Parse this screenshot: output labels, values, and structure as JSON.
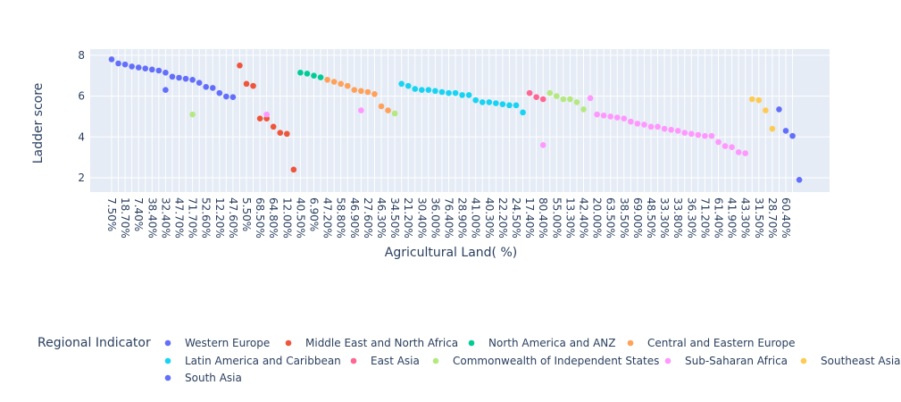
{
  "chart_data": {
    "type": "scatter",
    "xlabel": "Agricultural Land( %)",
    "ylabel": "Ladder score",
    "ylim": [
      1.3,
      8.3
    ],
    "yticks": [
      2,
      4,
      6,
      8
    ],
    "grid": true,
    "legend": {
      "title": "Regional Indicator",
      "placement": "bottom"
    },
    "categories": [
      "7.50%",
      "",
      "18.70%",
      "",
      "7.40%",
      "",
      "38.40%",
      "",
      "32.40%",
      "",
      "47.70%",
      "",
      "71.70%",
      "",
      "52.60%",
      "",
      "12.20%",
      "",
      "47.60%",
      "",
      "5.50%",
      "",
      "68.50%",
      "",
      "64.80%",
      "",
      "12.00%",
      "",
      "40.50%",
      "",
      "6.90%",
      "",
      "47.20%",
      "",
      "58.80%",
      "",
      "46.90%",
      "",
      "27.60%",
      "",
      "46.30%",
      "",
      "34.50%",
      "",
      "21.20%",
      "",
      "30.40%",
      "",
      "36.00%",
      "",
      "76.40%",
      "",
      "28.90%",
      "",
      "41.00%",
      "",
      "40.30%",
      "",
      "22.20%",
      "",
      "24.50%",
      "",
      "17.40%",
      "",
      "80.40%",
      "",
      "55.00%",
      "",
      "13.30%",
      "",
      "42.40%",
      "",
      "20.00%",
      "",
      "63.50%",
      "",
      "38.50%",
      "",
      "69.00%",
      "",
      "48.50%",
      "",
      "33.30%",
      "",
      "33.80%",
      "",
      "36.30%",
      "",
      "71.20%",
      "",
      "61.40%",
      "",
      "41.90%",
      "",
      "43.30%",
      "",
      "31.50%",
      "",
      "28.70%",
      "",
      "60.40%",
      ""
    ],
    "series": [
      {
        "name": "Western Europe",
        "color": "#636efa",
        "points": [
          [
            0,
            7.8
          ],
          [
            1,
            7.6
          ],
          [
            2,
            7.55
          ],
          [
            3,
            7.45
          ],
          [
            4,
            7.4
          ],
          [
            5,
            7.35
          ],
          [
            6,
            7.3
          ],
          [
            7,
            7.25
          ],
          [
            8,
            7.15
          ],
          [
            9,
            6.95
          ],
          [
            10,
            6.9
          ],
          [
            11,
            6.85
          ],
          [
            12,
            6.8
          ],
          [
            13,
            6.65
          ],
          [
            14,
            6.45
          ],
          [
            15,
            6.4
          ],
          [
            16,
            6.15
          ],
          [
            17,
            5.98
          ],
          [
            18,
            5.95
          ],
          [
            8,
            6.3
          ]
        ]
      },
      {
        "name": "Middle East and North Africa",
        "color": "#ef553b",
        "points": [
          [
            19,
            7.5
          ],
          [
            20,
            6.6
          ],
          [
            21,
            6.5
          ],
          [
            22,
            4.9
          ],
          [
            23,
            4.9
          ],
          [
            24,
            4.5
          ],
          [
            25,
            4.2
          ],
          [
            26,
            4.15
          ],
          [
            27,
            2.4
          ]
        ]
      },
      {
        "name": "North America and ANZ",
        "color": "#00cc96",
        "points": [
          [
            28,
            7.15
          ],
          [
            29,
            7.1
          ],
          [
            30,
            7.0
          ],
          [
            31,
            6.92
          ]
        ]
      },
      {
        "name": "Central and Eastern Europe",
        "color": "#ffa15a",
        "points": [
          [
            32,
            6.8
          ],
          [
            33,
            6.7
          ],
          [
            34,
            6.6
          ],
          [
            35,
            6.5
          ],
          [
            36,
            6.3
          ],
          [
            37,
            6.25
          ],
          [
            38,
            6.2
          ],
          [
            39,
            6.1
          ],
          [
            40,
            5.5
          ],
          [
            41,
            5.3
          ]
        ]
      },
      {
        "name": "Latin America and Caribbean",
        "color": "#19d3f3",
        "points": [
          [
            43,
            6.6
          ],
          [
            44,
            6.5
          ],
          [
            45,
            6.35
          ],
          [
            46,
            6.3
          ],
          [
            47,
            6.3
          ],
          [
            48,
            6.25
          ],
          [
            49,
            6.2
          ],
          [
            50,
            6.15
          ],
          [
            51,
            6.15
          ],
          [
            52,
            6.05
          ],
          [
            53,
            6.05
          ],
          [
            54,
            5.8
          ],
          [
            55,
            5.7
          ],
          [
            56,
            5.7
          ],
          [
            57,
            5.65
          ],
          [
            58,
            5.6
          ],
          [
            59,
            5.55
          ],
          [
            60,
            5.55
          ],
          [
            61,
            5.2
          ]
        ]
      },
      {
        "name": "East Asia",
        "color": "#ff6692",
        "points": [
          [
            62,
            6.15
          ],
          [
            63,
            5.95
          ],
          [
            64,
            5.85
          ]
        ]
      },
      {
        "name": "Commonwealth of Independent States",
        "color": "#b6e880",
        "points": [
          [
            12,
            5.1
          ],
          [
            42,
            5.15
          ],
          [
            65,
            6.15
          ],
          [
            66,
            6.0
          ],
          [
            67,
            5.85
          ],
          [
            68,
            5.85
          ],
          [
            69,
            5.7
          ],
          [
            70,
            5.35
          ]
        ]
      },
      {
        "name": "Sub-Saharan Africa",
        "color": "#ff97ff",
        "points": [
          [
            23,
            5.1
          ],
          [
            37,
            5.3
          ],
          [
            64,
            3.6
          ],
          [
            71,
            5.9
          ],
          [
            72,
            5.1
          ],
          [
            73,
            5.05
          ],
          [
            74,
            5.0
          ],
          [
            75,
            4.95
          ],
          [
            76,
            4.9
          ],
          [
            77,
            4.75
          ],
          [
            78,
            4.65
          ],
          [
            79,
            4.6
          ],
          [
            80,
            4.5
          ],
          [
            81,
            4.5
          ],
          [
            82,
            4.4
          ],
          [
            83,
            4.35
          ],
          [
            84,
            4.3
          ],
          [
            85,
            4.2
          ],
          [
            86,
            4.15
          ],
          [
            87,
            4.1
          ],
          [
            88,
            4.05
          ],
          [
            89,
            4.05
          ],
          [
            90,
            3.75
          ],
          [
            91,
            3.55
          ],
          [
            92,
            3.5
          ],
          [
            93,
            3.25
          ],
          [
            94,
            3.2
          ]
        ]
      },
      {
        "name": "Southeast Asia",
        "color": "#fecb52",
        "points": [
          [
            95,
            5.85
          ],
          [
            96,
            5.8
          ],
          [
            97,
            5.3
          ],
          [
            98,
            4.4
          ]
        ]
      },
      {
        "name": "South Asia",
        "color": "#636efa",
        "points": [
          [
            99,
            5.35
          ],
          [
            100,
            4.3
          ],
          [
            101,
            4.05
          ],
          [
            102,
            1.9
          ]
        ]
      }
    ]
  }
}
